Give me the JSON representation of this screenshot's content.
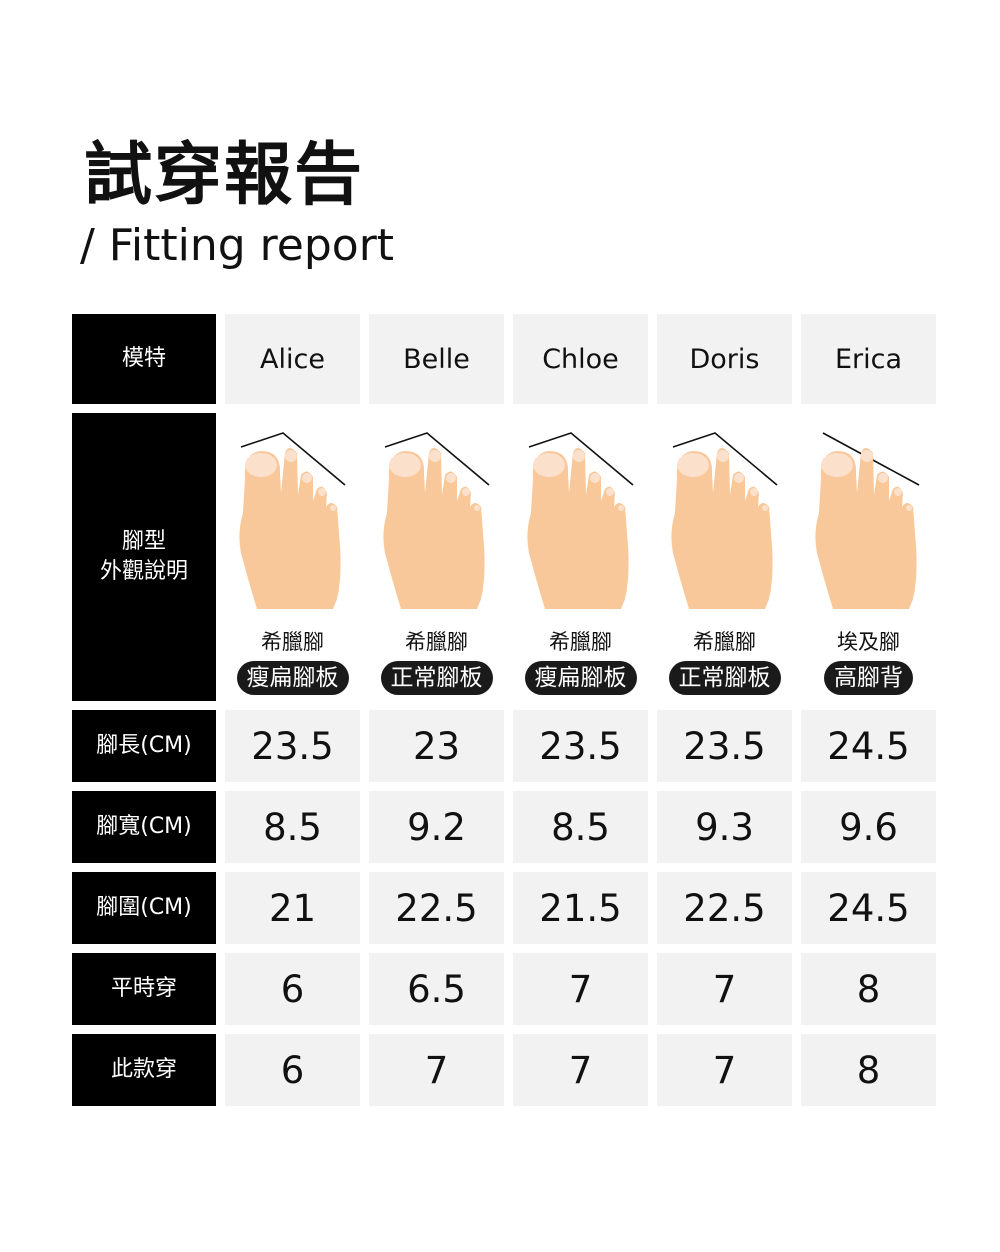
{
  "title": "試穿報告",
  "subtitle": "/ Fitting report",
  "row_labels": {
    "model": "模特",
    "foot_type": "腳型\n外觀說明",
    "length": "腳長(CM)",
    "width": "腳寬(CM)",
    "girth": "腳圍(CM)",
    "usual_size": "平時穿",
    "this_size": "此款穿"
  },
  "colors": {
    "header_bg": "#000000",
    "cell_bg": "#f2f2f2",
    "skin": "#f8c89a",
    "badge_bg": "#1a1a1a"
  },
  "models": [
    {
      "name": "Alice",
      "foot_type": "希臘腳",
      "badge": "瘦扁腳板",
      "length": "23.5",
      "width": "8.5",
      "girth": "21",
      "usual": "6",
      "this": "6"
    },
    {
      "name": "Belle",
      "foot_type": "希臘腳",
      "badge": "正常腳板",
      "length": "23",
      "width": "9.2",
      "girth": "22.5",
      "usual": "6.5",
      "this": "7"
    },
    {
      "name": "Chloe",
      "foot_type": "希臘腳",
      "badge": "瘦扁腳板",
      "length": "23.5",
      "width": "8.5",
      "girth": "21.5",
      "usual": "7",
      "this": "7"
    },
    {
      "name": "Doris",
      "foot_type": "希臘腳",
      "badge": "正常腳板",
      "length": "23.5",
      "width": "9.3",
      "girth": "22.5",
      "usual": "7",
      "this": "7"
    },
    {
      "name": "Erica",
      "foot_type": "埃及腳",
      "badge": "高腳背",
      "length": "24.5",
      "width": "9.6",
      "girth": "24.5",
      "usual": "8",
      "this": "8"
    }
  ]
}
